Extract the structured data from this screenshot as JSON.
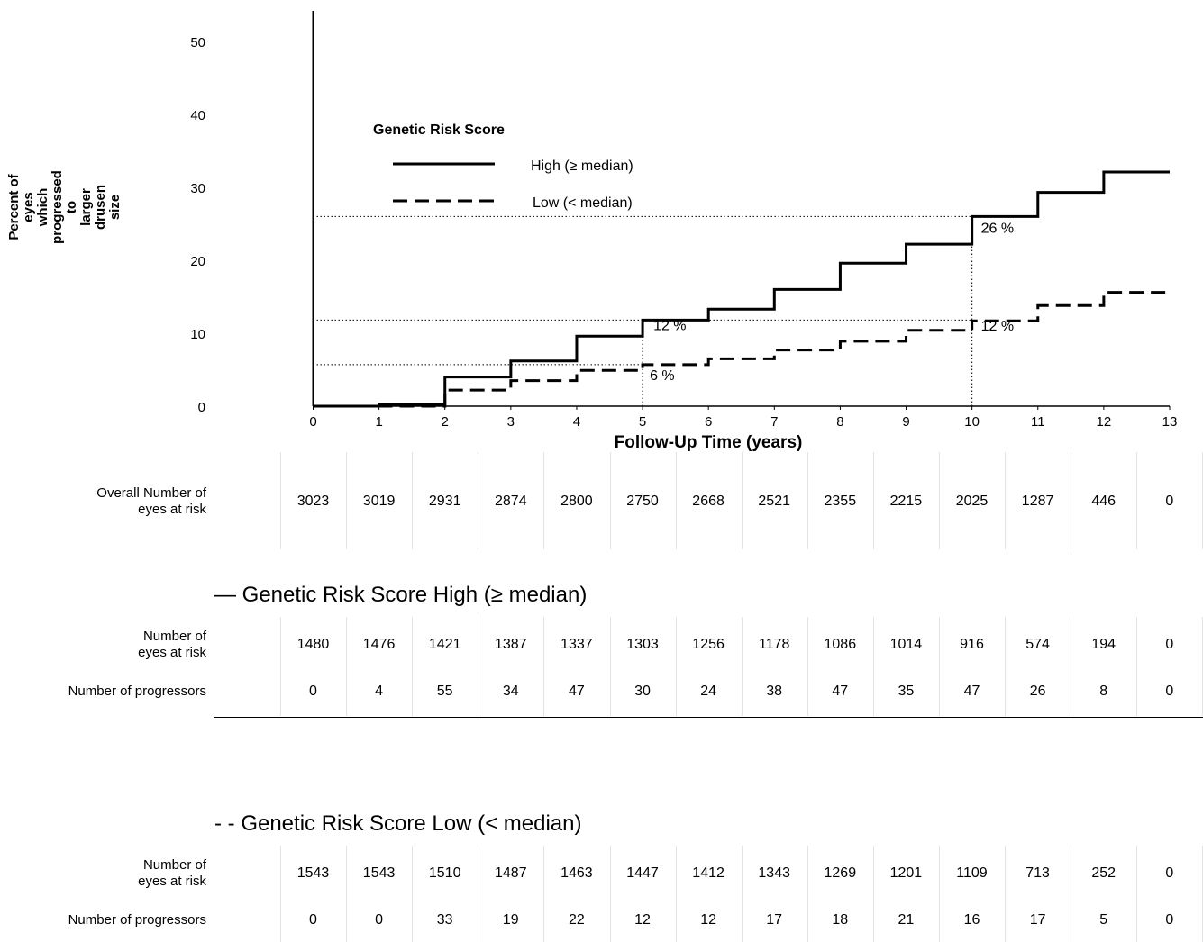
{
  "chart_data": {
    "type": "line",
    "title": "",
    "ylabel": "Percent of eyes\nwhich progressed to\nlarger drusen size",
    "xlabel": "Follow-Up Time (years)",
    "xlim": [
      0,
      13
    ],
    "ylim": [
      0,
      54
    ],
    "xticks": [
      "0",
      "1",
      "2",
      "3",
      "4",
      "5",
      "6",
      "7",
      "8",
      "9",
      "10",
      "11",
      "12",
      "13"
    ],
    "yticks": [
      "0",
      "10",
      "20",
      "30",
      "40",
      "50"
    ],
    "legend": {
      "title": "Genetic Risk Score",
      "position": "upper-left",
      "entries": [
        "High (≥ median)",
        "Low (< median)"
      ]
    },
    "series": [
      {
        "name": "High (≥ median)",
        "style": "solid",
        "step_x": [
          0,
          1,
          2,
          3,
          4,
          5,
          6,
          7,
          8,
          9,
          10,
          11,
          12,
          13
        ],
        "step_y": [
          0,
          0.2,
          4.0,
          6.2,
          9.6,
          11.8,
          13.3,
          16.0,
          19.6,
          22.2,
          26.0,
          29.3,
          32.1,
          32.1
        ]
      },
      {
        "name": "Low (< median)",
        "style": "dashed",
        "step_x": [
          0,
          1,
          2,
          3,
          4,
          5,
          6,
          7,
          8,
          9,
          10,
          11,
          12,
          13
        ],
        "step_y": [
          0,
          0,
          2.2,
          3.5,
          4.9,
          5.7,
          6.5,
          7.7,
          8.9,
          10.4,
          11.7,
          13.8,
          15.6,
          15.6
        ]
      }
    ],
    "annotations": [
      {
        "text": "26 %",
        "x": 10,
        "y": 26
      },
      {
        "text": "12 %",
        "x": 5,
        "y": 11.8
      },
      {
        "text": "12 %",
        "x": 10,
        "y": 11.7
      },
      {
        "text": "6 %",
        "x": 5,
        "y": 5.7
      }
    ],
    "reference_lines": [
      {
        "y": 26,
        "x_end": 10
      },
      {
        "y": 11.8,
        "x_end": 10
      },
      {
        "y": 5.7,
        "x_end": 5
      },
      {
        "x": 5,
        "y_end": 11.8
      },
      {
        "x": 10,
        "y_end": 26
      }
    ]
  },
  "risk_table": {
    "overall": {
      "label": "Overall Number of\neyes at risk",
      "values": [
        "3023",
        "3019",
        "2931",
        "2874",
        "2800",
        "2750",
        "2668",
        "2521",
        "2355",
        "2215",
        "2025",
        "1287",
        "446",
        "0"
      ]
    },
    "high": {
      "title": "—  Genetic Risk Score High (≥ median)",
      "at_risk_label": "Number of \neyes at risk",
      "at_risk": [
        "1480",
        "1476",
        "1421",
        "1387",
        "1337",
        "1303",
        "1256",
        "1178",
        "1086",
        "1014",
        "916",
        "574",
        "194",
        "0"
      ],
      "progressors_label": "Number of progressors",
      "progressors": [
        "0",
        "4",
        "55",
        "34",
        "47",
        "30",
        "24",
        "38",
        "47",
        "35",
        "47",
        "26",
        "8",
        "0"
      ]
    },
    "low": {
      "title": "-  - Genetic Risk Score Low (< median)",
      "at_risk_label": "Number of \neyes at risk",
      "at_risk": [
        "1543",
        "1543",
        "1510",
        "1487",
        "1463",
        "1447",
        "1412",
        "1343",
        "1269",
        "1201",
        "1109",
        "713",
        "252",
        "0"
      ],
      "progressors_label": "Number of progressors",
      "progressors": [
        "0",
        "0",
        "33",
        "19",
        "22",
        "12",
        "12",
        "17",
        "18",
        "21",
        "16",
        "17",
        "5",
        "0"
      ]
    }
  }
}
